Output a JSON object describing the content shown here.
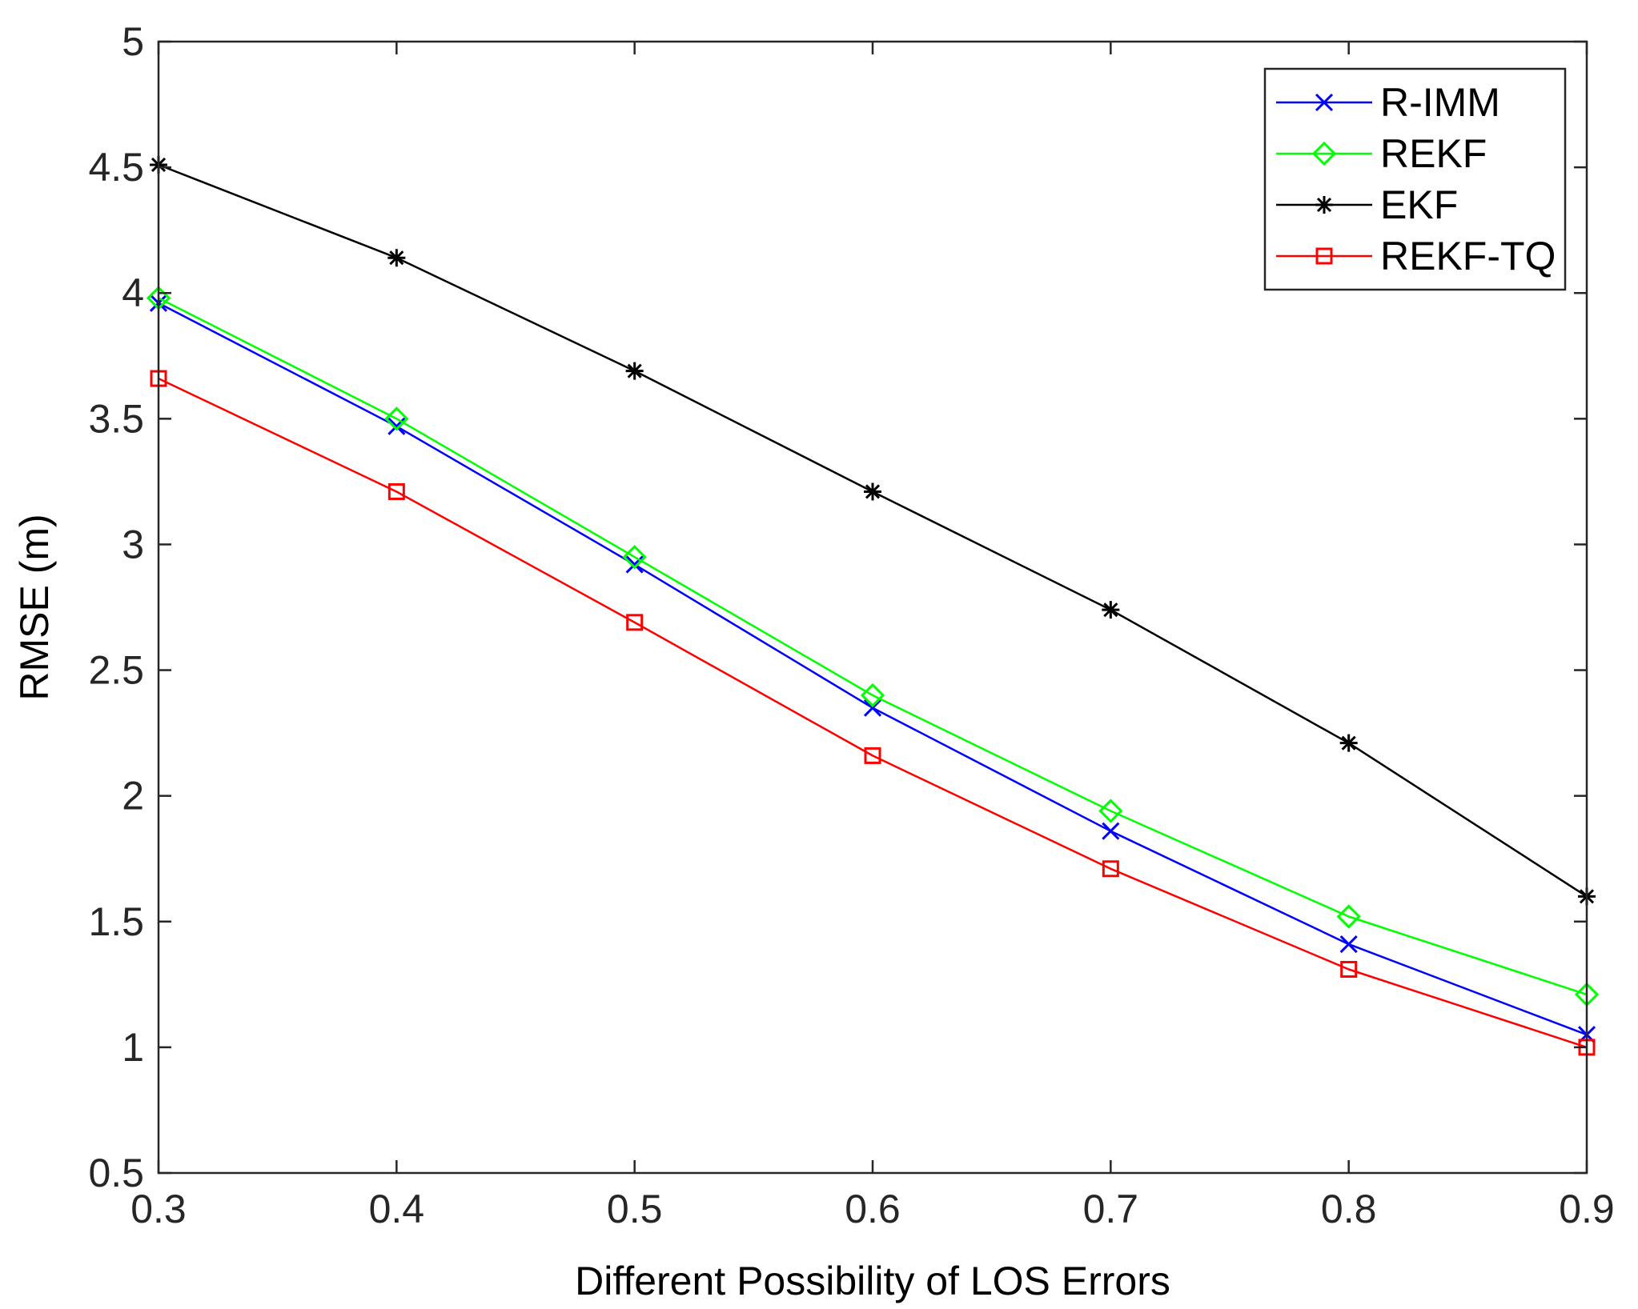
{
  "chart_data": {
    "type": "line",
    "title": "",
    "xlabel": "Different Possibility of LOS Errors",
    "ylabel": "RMSE (m)",
    "xlim": [
      0.3,
      0.9
    ],
    "ylim": [
      0.5,
      5
    ],
    "xticks": [
      0.3,
      0.4,
      0.5,
      0.6,
      0.7,
      0.8,
      0.9
    ],
    "yticks": [
      0.5,
      1,
      1.5,
      2,
      2.5,
      3,
      3.5,
      4,
      4.5,
      5
    ],
    "xtick_labels": [
      "0.3",
      "0.4",
      "0.5",
      "0.6",
      "0.7",
      "0.8",
      "0.9"
    ],
    "ytick_labels": [
      "0.5",
      "1",
      "1.5",
      "2",
      "2.5",
      "3",
      "3.5",
      "4",
      "4.5",
      "5"
    ],
    "grid": false,
    "legend_position": "top-right",
    "x": [
      0.3,
      0.4,
      0.5,
      0.6,
      0.7,
      0.8,
      0.9
    ],
    "series": [
      {
        "name": "R-IMM",
        "color": "#0000ff",
        "marker": "x",
        "values": [
          3.96,
          3.47,
          2.92,
          2.35,
          1.86,
          1.41,
          1.05
        ]
      },
      {
        "name": "REKF",
        "color": "#00ff00",
        "marker": "diamond",
        "values": [
          3.98,
          3.5,
          2.95,
          2.4,
          1.94,
          1.52,
          1.21
        ]
      },
      {
        "name": "EKF",
        "color": "#000000",
        "marker": "asterisk",
        "values": [
          4.51,
          4.14,
          3.69,
          3.21,
          2.74,
          2.21,
          1.6
        ]
      },
      {
        "name": "REKF-TQ",
        "color": "#ff0000",
        "marker": "square",
        "values": [
          3.66,
          3.21,
          2.69,
          2.16,
          1.71,
          1.31,
          1.0
        ]
      }
    ]
  }
}
